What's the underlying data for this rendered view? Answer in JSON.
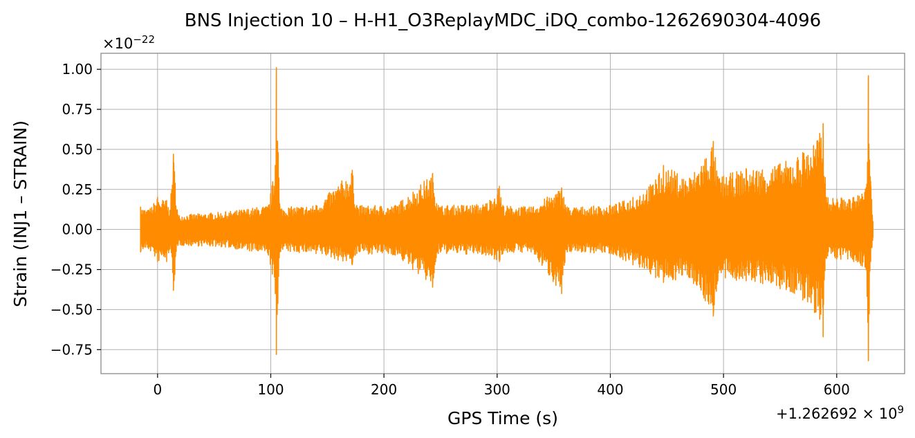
{
  "chart_data": {
    "type": "line",
    "title": "BNS Injection 10 – H-H1_O3ReplayMDC_iDQ_combo-1262690304-4096",
    "xlabel": "GPS Time (s)",
    "ylabel": "Strain (INJ1 – STRAIN)",
    "x_offset_label": "+1.262692 × 10",
    "x_offset_exponent": "9",
    "y_scale_label": "×10",
    "y_scale_exponent": "−22",
    "xlim": [
      -50,
      660
    ],
    "ylim": [
      -0.9,
      1.1
    ],
    "x_ticks": [
      0,
      100,
      200,
      300,
      400,
      500,
      600
    ],
    "x_tick_labels": [
      "0",
      "100",
      "200",
      "300",
      "400",
      "500",
      "600"
    ],
    "y_ticks": [
      -0.75,
      -0.5,
      -0.25,
      0.0,
      0.25,
      0.5,
      0.75,
      1.0
    ],
    "y_tick_labels": [
      "−0.75",
      "−0.50",
      "−0.25",
      "0.00",
      "0.25",
      "0.50",
      "0.75",
      "1.00"
    ],
    "grid": true,
    "series": [
      {
        "color": "#ff8c00",
        "x_range": [
          -15,
          632
        ],
        "envelope": [
          {
            "x": -15,
            "upper": 0.14,
            "lower": -0.14
          },
          {
            "x": -8,
            "upper": 0.12,
            "lower": -0.12
          },
          {
            "x": 0,
            "upper": 0.2,
            "lower": -0.2
          },
          {
            "x": 8,
            "upper": 0.18,
            "lower": -0.2
          },
          {
            "x": 11,
            "upper": 0.12,
            "lower": -0.12
          },
          {
            "x": 14,
            "upper": 0.47,
            "lower": -0.38
          },
          {
            "x": 18,
            "upper": 0.09,
            "lower": -0.1
          },
          {
            "x": 60,
            "upper": 0.11,
            "lower": -0.11
          },
          {
            "x": 98,
            "upper": 0.15,
            "lower": -0.16
          },
          {
            "x": 104,
            "upper": 0.4,
            "lower": -0.4
          },
          {
            "x": 105,
            "upper": 1.01,
            "lower": -0.78
          },
          {
            "x": 108,
            "upper": 0.14,
            "lower": -0.14
          },
          {
            "x": 140,
            "upper": 0.15,
            "lower": -0.15
          },
          {
            "x": 172,
            "upper": 0.37,
            "lower": -0.22
          },
          {
            "x": 176,
            "upper": 0.15,
            "lower": -0.15
          },
          {
            "x": 210,
            "upper": 0.15,
            "lower": -0.16
          },
          {
            "x": 243,
            "upper": 0.35,
            "lower": -0.36
          },
          {
            "x": 248,
            "upper": 0.15,
            "lower": -0.15
          },
          {
            "x": 290,
            "upper": 0.16,
            "lower": -0.16
          },
          {
            "x": 302,
            "upper": 0.27,
            "lower": -0.2
          },
          {
            "x": 305,
            "upper": 0.15,
            "lower": -0.15
          },
          {
            "x": 330,
            "upper": 0.14,
            "lower": -0.14
          },
          {
            "x": 357,
            "upper": 0.26,
            "lower": -0.4
          },
          {
            "x": 362,
            "upper": 0.14,
            "lower": -0.14
          },
          {
            "x": 400,
            "upper": 0.15,
            "lower": -0.15
          },
          {
            "x": 420,
            "upper": 0.2,
            "lower": -0.22
          },
          {
            "x": 440,
            "upper": 0.31,
            "lower": -0.3
          },
          {
            "x": 447,
            "upper": 0.4,
            "lower": -0.33
          },
          {
            "x": 470,
            "upper": 0.32,
            "lower": -0.3
          },
          {
            "x": 491,
            "upper": 0.55,
            "lower": -0.54
          },
          {
            "x": 495,
            "upper": 0.33,
            "lower": -0.32
          },
          {
            "x": 520,
            "upper": 0.38,
            "lower": -0.32
          },
          {
            "x": 550,
            "upper": 0.41,
            "lower": -0.37
          },
          {
            "x": 570,
            "upper": 0.48,
            "lower": -0.44
          },
          {
            "x": 585,
            "upper": 0.6,
            "lower": -0.56
          },
          {
            "x": 588,
            "upper": 0.66,
            "lower": -0.67
          },
          {
            "x": 591,
            "upper": 0.2,
            "lower": -0.18
          },
          {
            "x": 615,
            "upper": 0.2,
            "lower": -0.2
          },
          {
            "x": 626,
            "upper": 0.26,
            "lower": -0.25
          },
          {
            "x": 628,
            "upper": 0.96,
            "lower": -0.82
          },
          {
            "x": 630,
            "upper": 0.3,
            "lower": -0.2
          },
          {
            "x": 632,
            "upper": 0.05,
            "lower": -0.05
          }
        ]
      }
    ]
  }
}
